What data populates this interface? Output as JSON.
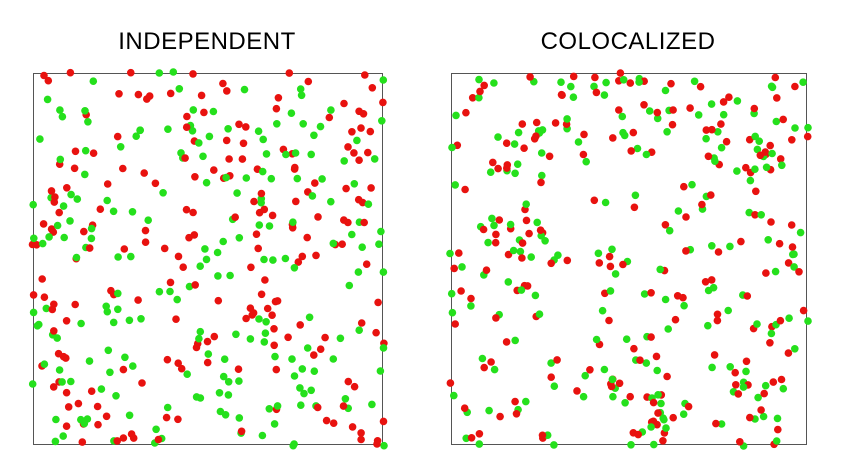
{
  "panels": [
    {
      "title": "INDEPENDENT",
      "pattern": "independent",
      "seed": 1234,
      "red_count": 200,
      "green_count": 200
    },
    {
      "title": "COLOCALIZED",
      "pattern": "colocalized",
      "seed": 9876,
      "red_count": 190,
      "green_count": 190
    }
  ],
  "colors": {
    "red": "#e8120f",
    "green": "#25e01c",
    "frame": "#555555"
  }
}
